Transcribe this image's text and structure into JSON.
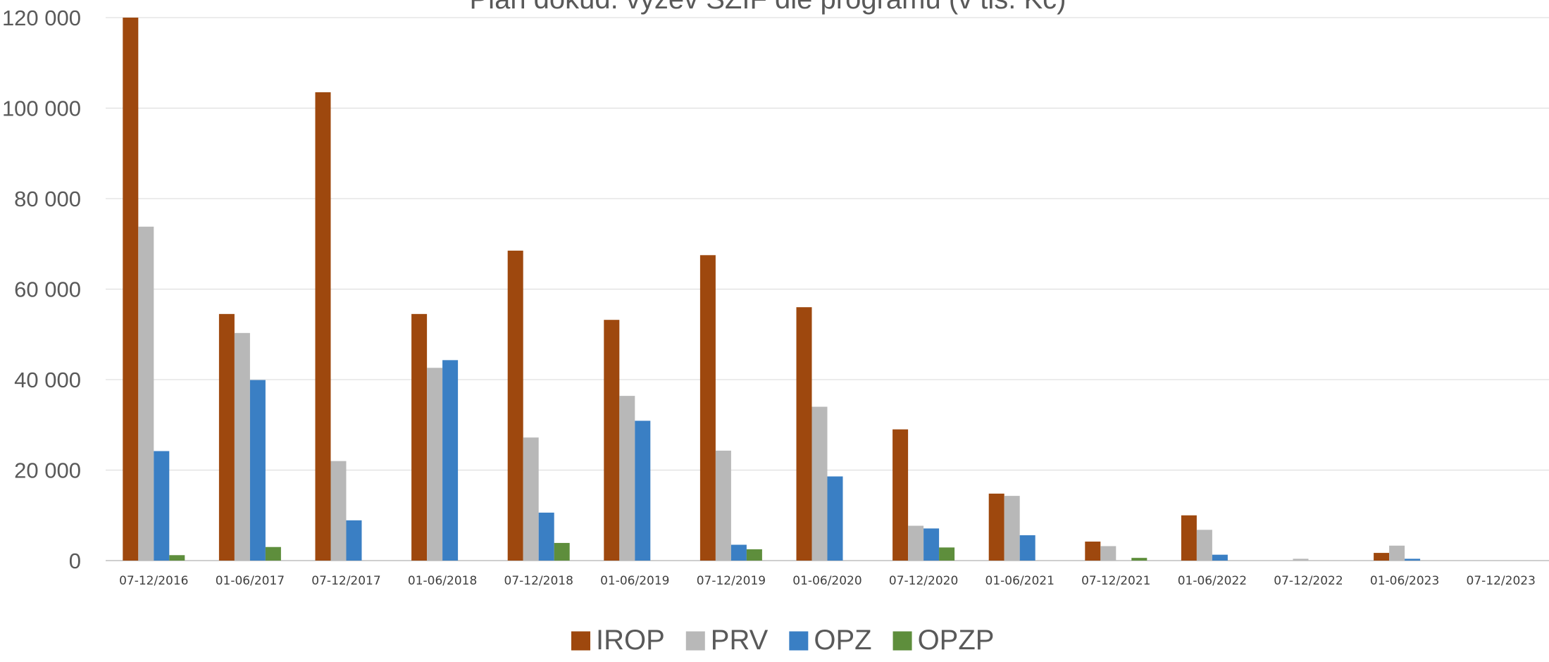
{
  "chart_data": {
    "type": "bar",
    "title": "Plán dokud. výzev SZIF dle programu (v tis. Kč)",
    "xlabel": "",
    "ylabel": "",
    "ylim": [
      0,
      120000
    ],
    "yticks": [
      0,
      20000,
      40000,
      60000,
      80000,
      100000,
      120000
    ],
    "ytick_labels": [
      "0",
      "20 000",
      "40 000",
      "60 000",
      "80 000",
      "100 000",
      "120 000"
    ],
    "grid": true,
    "legend_position": "bottom",
    "categories": [
      "07-12/2016",
      "01-06/2017",
      "07-12/2017",
      "01-06/2018",
      "07-12/2018",
      "01-06/2019",
      "07-12/2019",
      "01-06/2020",
      "07-12/2020",
      "01-06/2021",
      "07-12/2021",
      "01-06/2022",
      "07-12/2022",
      "01-06/2023",
      "07-12/2023"
    ],
    "series": [
      {
        "name": "IROP",
        "color": "#9E480E",
        "values": [
          120000,
          54500,
          103500,
          54500,
          68500,
          53200,
          67500,
          56000,
          29000,
          14800,
          4200,
          10000,
          0,
          1700,
          0
        ]
      },
      {
        "name": "PRV",
        "color": "#B8B8B8",
        "values": [
          73800,
          50300,
          22000,
          42600,
          27200,
          36400,
          24300,
          34000,
          7700,
          14300,
          3200,
          6800,
          400,
          3300,
          0
        ]
      },
      {
        "name": "OPZ",
        "color": "#3A7FC4",
        "values": [
          24200,
          39900,
          8900,
          44300,
          10600,
          30900,
          3500,
          18600,
          7100,
          5600,
          0,
          1300,
          0,
          400,
          0
        ]
      },
      {
        "name": "OPZP",
        "color": "#5E8E3C",
        "values": [
          1200,
          3000,
          0,
          0,
          3900,
          0,
          2500,
          0,
          2900,
          0,
          600,
          0,
          0,
          0,
          0
        ]
      }
    ]
  }
}
